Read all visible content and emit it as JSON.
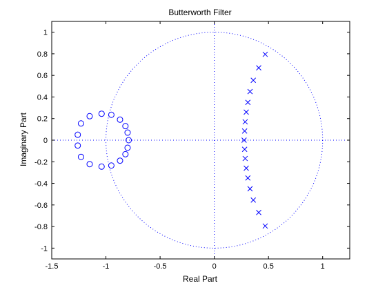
{
  "chart_data": {
    "type": "scatter",
    "title": "Butterworth Filter",
    "xlabel": "Real Part",
    "ylabel": "Imaginary Part",
    "xlim": [
      -1.5,
      1.25
    ],
    "ylim": [
      -1.1,
      1.1
    ],
    "xticks": [
      -1.5,
      -1,
      -0.5,
      0,
      0.5,
      1
    ],
    "yticks": [
      -1,
      -0.8,
      -0.6,
      -0.4,
      -0.2,
      0,
      0.2,
      0.4,
      0.6,
      0.8,
      1
    ],
    "xtick_labels": [
      "-1.5",
      "-1",
      "-0.5",
      "0",
      "0.5",
      "1"
    ],
    "ytick_labels": [
      "-1",
      "-0.8",
      "-0.6",
      "-0.4",
      "-0.2",
      "0",
      "0.2",
      "0.4",
      "0.6",
      "0.8",
      "1"
    ],
    "grid": false,
    "unit_circle": true,
    "color": "#0000ff",
    "series": [
      {
        "marker": "o",
        "points": [
          [
            -1.26,
            0.05
          ],
          [
            -1.23,
            0.155
          ],
          [
            -1.15,
            0.222
          ],
          [
            -1.04,
            0.245
          ],
          [
            -0.95,
            0.235
          ],
          [
            -0.87,
            0.19
          ],
          [
            -0.82,
            0.13
          ],
          [
            -0.8,
            0.07
          ],
          [
            -0.79,
            0.0
          ],
          [
            -0.8,
            -0.07
          ],
          [
            -0.82,
            -0.13
          ],
          [
            -0.87,
            -0.19
          ],
          [
            -0.95,
            -0.235
          ],
          [
            -1.04,
            -0.245
          ],
          [
            -1.15,
            -0.222
          ],
          [
            -1.23,
            -0.155
          ],
          [
            -1.26,
            -0.05
          ]
        ]
      },
      {
        "marker": "x",
        "points": [
          [
            0.47,
            0.795
          ],
          [
            0.41,
            0.67
          ],
          [
            0.36,
            0.555
          ],
          [
            0.33,
            0.45
          ],
          [
            0.31,
            0.35
          ],
          [
            0.295,
            0.26
          ],
          [
            0.285,
            0.17
          ],
          [
            0.28,
            0.085
          ],
          [
            0.275,
            0.0
          ],
          [
            0.28,
            -0.085
          ],
          [
            0.285,
            -0.17
          ],
          [
            0.295,
            -0.26
          ],
          [
            0.31,
            -0.35
          ],
          [
            0.33,
            -0.45
          ],
          [
            0.36,
            -0.555
          ],
          [
            0.41,
            -0.67
          ],
          [
            0.47,
            -0.795
          ]
        ]
      }
    ]
  }
}
